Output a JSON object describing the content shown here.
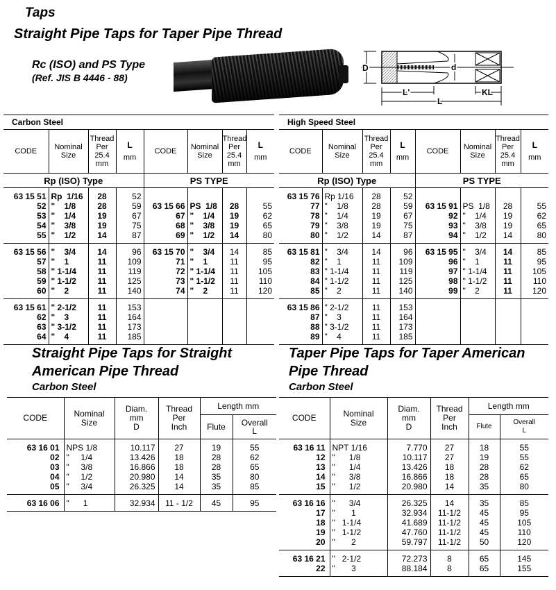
{
  "header": {
    "category": "Taps",
    "title": "Straight Pipe Taps for Taper Pipe Thread",
    "subtitle": "Rc (ISO) and PS Type",
    "reference": "(Ref. JIS B 4446 - 88)"
  },
  "diagram": {
    "labels": {
      "D": "D",
      "d": "d",
      "L_prime": "L'",
      "KL": "KL",
      "L": "L"
    }
  },
  "top_headers": {
    "code": "CODE",
    "nominal_1": "Nominal",
    "nominal_2": "Size",
    "thread_1": "Thread",
    "thread_2": "Per",
    "thread_3": "25.4",
    "thread_4": "mm",
    "l_1": "L",
    "l_2": "mm"
  },
  "top_tables": [
    {
      "material": "Carbon Steel",
      "left_type": "Rp (ISO) Type",
      "right_type": "PS TYPE",
      "left_groups": [
        [
          [
            "63 15 51",
            "Rp  1/16",
            "28",
            "52"
          ],
          [
            "52",
            "\"    1/8",
            "28",
            "59"
          ],
          [
            "53",
            "\"    1/4",
            "19",
            "67"
          ],
          [
            "54",
            "\"    3/8",
            "19",
            "75"
          ],
          [
            "55",
            "\"    1/2",
            "14",
            "87"
          ]
        ],
        [
          [
            "63 15 56",
            "\"    3/4",
            "14",
            "96"
          ],
          [
            "57",
            "\"    1",
            "11",
            "109"
          ],
          [
            "58",
            "\" 1-1/4",
            "11",
            "119"
          ],
          [
            "59",
            "\" 1-1/2",
            "11",
            "125"
          ],
          [
            "60",
            "\"    2",
            "11",
            "140"
          ]
        ],
        [
          [
            "63 15 61",
            "\" 2-1/2",
            "11",
            "153"
          ],
          [
            "62",
            "\"    3",
            "11",
            "164"
          ],
          [
            "63",
            "\" 3-1/2",
            "11",
            "173"
          ],
          [
            "64",
            "\"    4",
            "11",
            "185"
          ]
        ]
      ],
      "right_groups": [
        [
          [
            "63 15 66",
            "PS  1/8",
            "28",
            "55"
          ],
          [
            "67",
            "\"    1/4",
            "19",
            "62"
          ],
          [
            "68",
            "\"    3/8",
            "19",
            "65"
          ],
          [
            "69",
            "\"    1/2",
            "14",
            "80"
          ]
        ],
        [
          [
            "63 15 70",
            "\"    3/4",
            "14",
            "85"
          ],
          [
            "71",
            "\"    1",
            "11",
            "95"
          ],
          [
            "72",
            "\" 1-1/4",
            "11",
            "105"
          ],
          [
            "73",
            "\" 1-1/2",
            "11",
            "110"
          ],
          [
            "74",
            "\"    2",
            "11",
            "120"
          ]
        ],
        []
      ]
    },
    {
      "material": "High Speed Steel",
      "left_type": "Rp (ISO) Type",
      "right_type": "PS TYPE",
      "left_groups": [
        [
          [
            "63 15 76",
            "Rp 1/16",
            "28",
            "52"
          ],
          [
            "77",
            "\"    1/8",
            "28",
            "59"
          ],
          [
            "78",
            "\"    1/4",
            "19",
            "67"
          ],
          [
            "79",
            "\"    3/8",
            "19",
            "75"
          ],
          [
            "80",
            "\"    1/2",
            "14",
            "87"
          ]
        ],
        [
          [
            "63 15 81",
            "\"    3/4",
            "14",
            "96"
          ],
          [
            "82",
            "\"    1",
            "11",
            "109"
          ],
          [
            "83",
            "\" 1-1/4",
            "11",
            "119"
          ],
          [
            "84",
            "\" 1-1/2",
            "11",
            "125"
          ],
          [
            "85",
            "\"    2",
            "11",
            "140"
          ]
        ],
        [
          [
            "63 15 86",
            "\" 2-1/2",
            "11",
            "153"
          ],
          [
            "87",
            "\"    3",
            "11",
            "164"
          ],
          [
            "88",
            "\" 3-1/2",
            "11",
            "173"
          ],
          [
            "89",
            "\"    4",
            "11",
            "185"
          ]
        ]
      ],
      "right_groups": [
        [
          [
            "63 15 91",
            "PS  1/8",
            "28",
            "55"
          ],
          [
            "92",
            "\"    1/4",
            "19",
            "62"
          ],
          [
            "93",
            "\"    3/8",
            "19",
            "65"
          ],
          [
            "94",
            "\"    1/2",
            "14",
            "80"
          ]
        ],
        [
          [
            "63 15 95",
            "\"    3/4",
            "14",
            "85"
          ],
          [
            "96",
            "\"    1",
            "11",
            "95"
          ],
          [
            "97",
            "\" 1-1/4",
            "11",
            "105"
          ],
          [
            "98",
            "\" 1-1/2",
            "11",
            "110"
          ],
          [
            "99",
            "\"    2",
            "11",
            "120"
          ]
        ],
        []
      ]
    }
  ],
  "bottom_headers": {
    "code": "CODE",
    "nominal_1": "Nominal",
    "nominal_2": "Size",
    "diam_1": "Diam.",
    "diam_2": "mm",
    "diam_3": "D",
    "thread_1": "Thread",
    "thread_2": "Per",
    "thread_3": "Inch",
    "length": "Length mm",
    "flute": "Flute",
    "overall_1": "Overall",
    "overall_2": "L"
  },
  "bottom_tables": [
    {
      "title_1": "Straight Pipe Taps for Straight",
      "title_2": "American Pipe Thread",
      "material": "Carbon Steel",
      "groups": [
        [
          [
            "63 16 01",
            "NPS 1/8",
            "10.117",
            "27",
            "19",
            "55"
          ],
          [
            "02",
            "\"     1/4",
            "13.426",
            "18",
            "28",
            "62"
          ],
          [
            "03",
            "\"     3/8",
            "16.866",
            "18",
            "28",
            "65"
          ],
          [
            "04",
            "\"     1/2",
            "20.980",
            "14",
            "35",
            "80"
          ],
          [
            "05",
            "\"     3/4",
            "26.325",
            "14",
            "35",
            "85"
          ]
        ],
        [
          [
            "63 16 06",
            "\"      1",
            "32.934",
            "11 - 1/2",
            "45",
            "95"
          ]
        ]
      ]
    },
    {
      "title_1": "Taper Pipe Taps for Taper American",
      "title_2": "Pipe Thread",
      "material": "Carbon Steel",
      "groups": [
        [
          [
            "63 16 11",
            "NPT 1/16",
            "7.770",
            "27",
            "18",
            "55"
          ],
          [
            "12",
            "\"      1/8",
            "10.117",
            "27",
            "19",
            "55"
          ],
          [
            "13",
            "\"      1/4",
            "13.426",
            "18",
            "28",
            "62"
          ],
          [
            "14",
            "\"      3/8",
            "16.866",
            "18",
            "28",
            "65"
          ],
          [
            "15",
            "\"      1/2",
            "20.980",
            "14",
            "35",
            "80"
          ]
        ],
        [
          [
            "63 16 16",
            "\"      3/4",
            "26.325",
            "14",
            "35",
            "85"
          ],
          [
            "17",
            "\"       1",
            "32.934",
            "11-1/2",
            "45",
            "95"
          ],
          [
            "18",
            "\"   1-1/4",
            "41.689",
            "11-1/2",
            "45",
            "105"
          ],
          [
            "19",
            "\"   1-1/2",
            "47.760",
            "11-1/2",
            "45",
            "110"
          ],
          [
            "20",
            "\"       2",
            "59.797",
            "11-1/2",
            "50",
            "120"
          ]
        ],
        [
          [
            "63 16 21",
            "\"   2-1/2",
            "72.273",
            "8",
            "65",
            "145"
          ],
          [
            "22",
            "\"       3",
            "88.184",
            "8",
            "65",
            "155"
          ]
        ]
      ]
    }
  ]
}
